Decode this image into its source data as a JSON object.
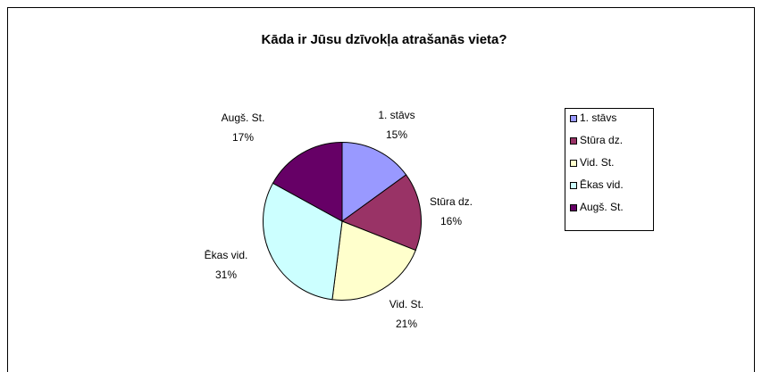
{
  "chart_data": {
    "type": "pie",
    "title": "Kāda ir Jūsu dzīvokļa atrašanās vieta?",
    "categories": [
      "1. stāvs",
      "Stūra dz.",
      "Vid. St.",
      "Ēkas vid.",
      "Augš. St."
    ],
    "values": [
      15,
      16,
      21,
      31,
      17
    ],
    "value_labels": [
      "15%",
      "16%",
      "21%",
      "31%",
      "17%"
    ],
    "colors": [
      "#9999ff",
      "#993366",
      "#ffffcc",
      "#ccffff",
      "#660066"
    ],
    "legend": "right"
  }
}
